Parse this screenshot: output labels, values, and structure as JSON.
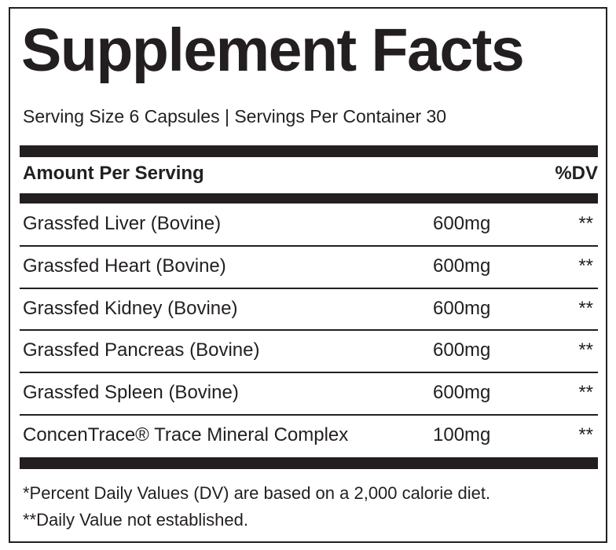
{
  "title": "Supplement Facts",
  "serving": "Serving Size 6 Capsules | Servings Per Container 30",
  "table": {
    "header": [
      "Amount Per Serving",
      "%DV"
    ],
    "rows": [
      [
        "Grassfed Liver (Bovine)",
        "600mg",
        "**"
      ],
      [
        "Grassfed Heart (Bovine)",
        "600mg",
        "**"
      ],
      [
        "Grassfed Kidney (Bovine)",
        "600mg",
        "**"
      ],
      [
        "Grassfed Pancreas (Bovine)",
        "600mg",
        "**"
      ],
      [
        "Grassfed Spleen (Bovine)",
        "600mg",
        "**"
      ],
      [
        "ConcenTrace® Trace Mineral Complex",
        "100mg",
        "**"
      ]
    ]
  },
  "footnotes": [
    "*Percent Daily Values (DV) are based on a 2,000 calorie diet.",
    "**Daily Value not established."
  ]
}
